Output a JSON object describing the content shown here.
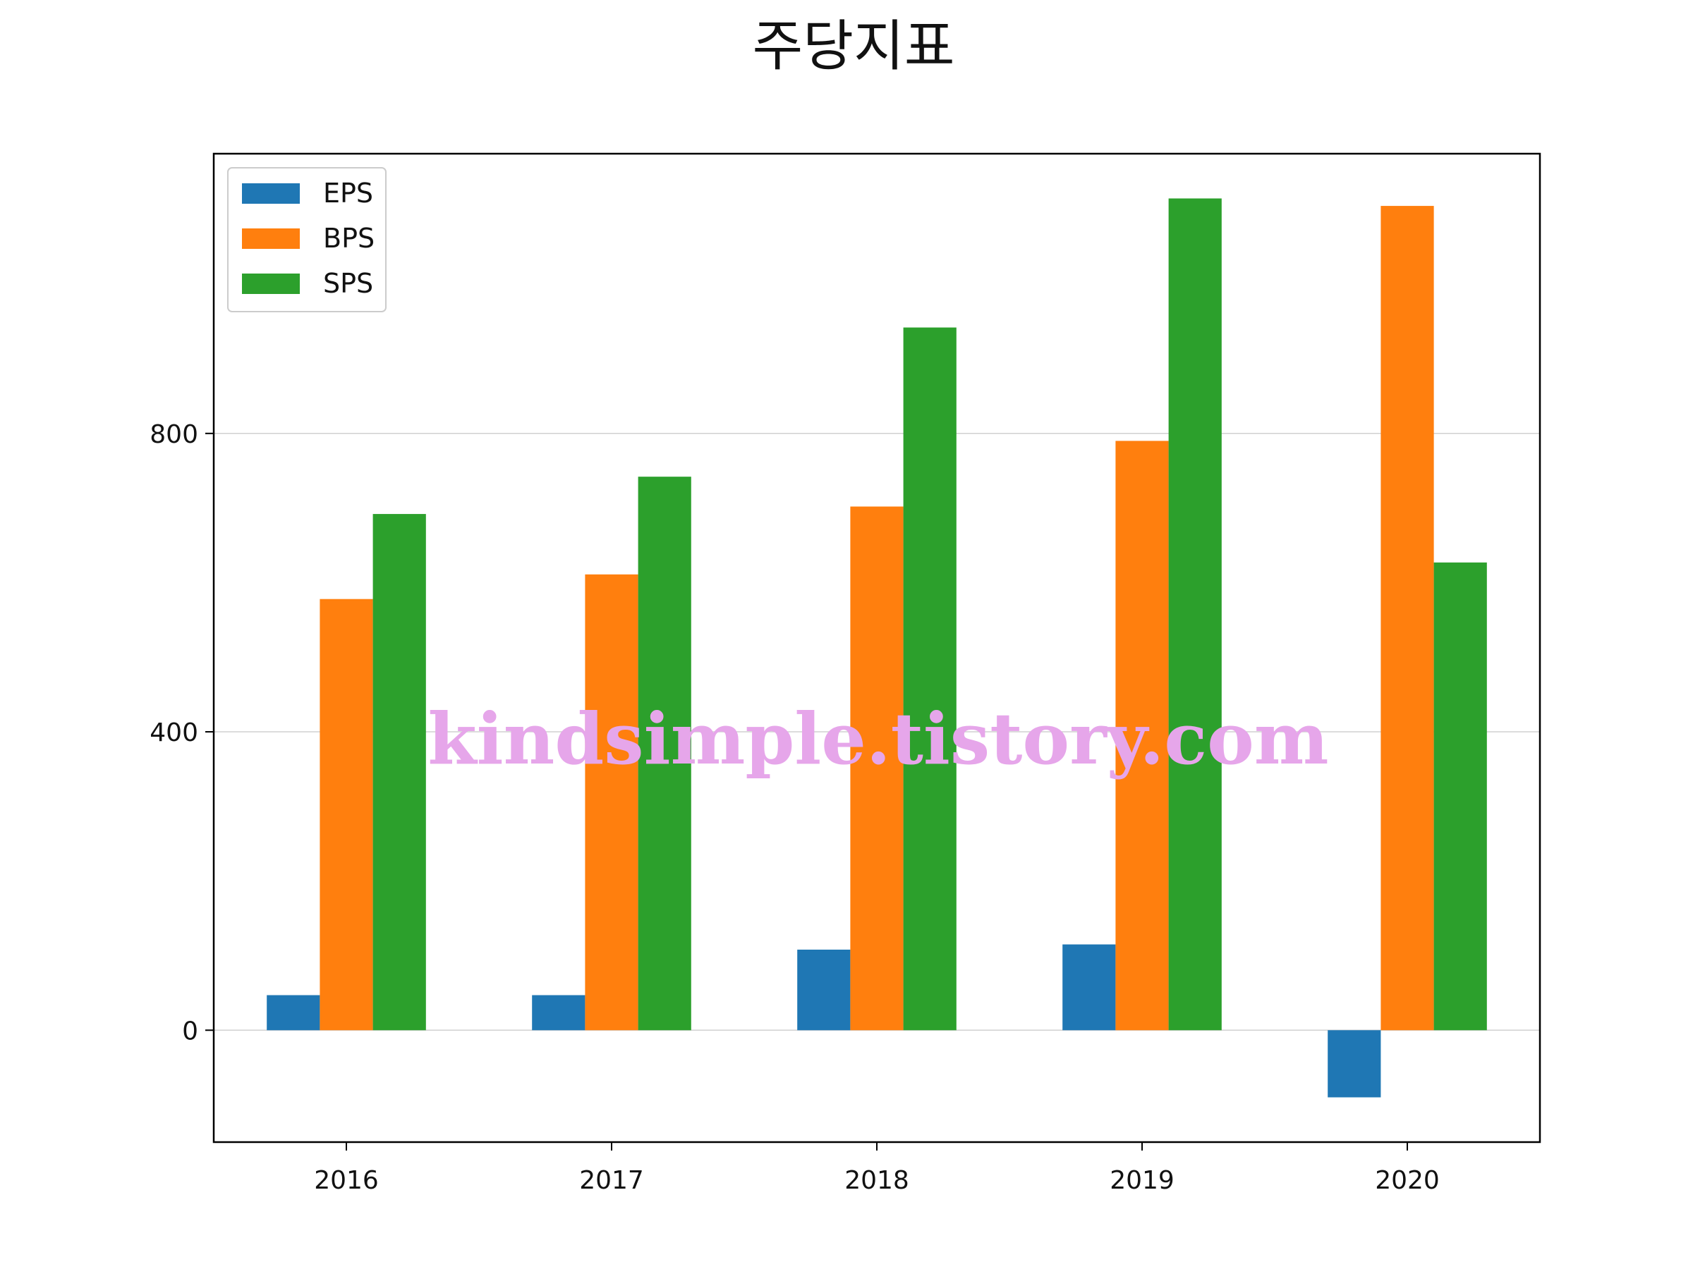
{
  "chart_data": {
    "type": "bar",
    "title": "주당지표",
    "categories": [
      "2016",
      "2017",
      "2018",
      "2019",
      "2020"
    ],
    "series": [
      {
        "name": "EPS",
        "color": "#1f77b4",
        "values": [
          47,
          47,
          108,
          115,
          -90
        ]
      },
      {
        "name": "BPS",
        "color": "#ff7f0e",
        "values": [
          578,
          611,
          702,
          790,
          1105
        ]
      },
      {
        "name": "SPS",
        "color": "#2ca02c",
        "values": [
          692,
          742,
          942,
          1115,
          627
        ]
      }
    ],
    "yticks": [
      0,
      400,
      800
    ],
    "ylim": [
      -150,
      1175
    ],
    "grid": "y",
    "legend": "top-left"
  },
  "watermark": "kindsimple.tistory.com"
}
